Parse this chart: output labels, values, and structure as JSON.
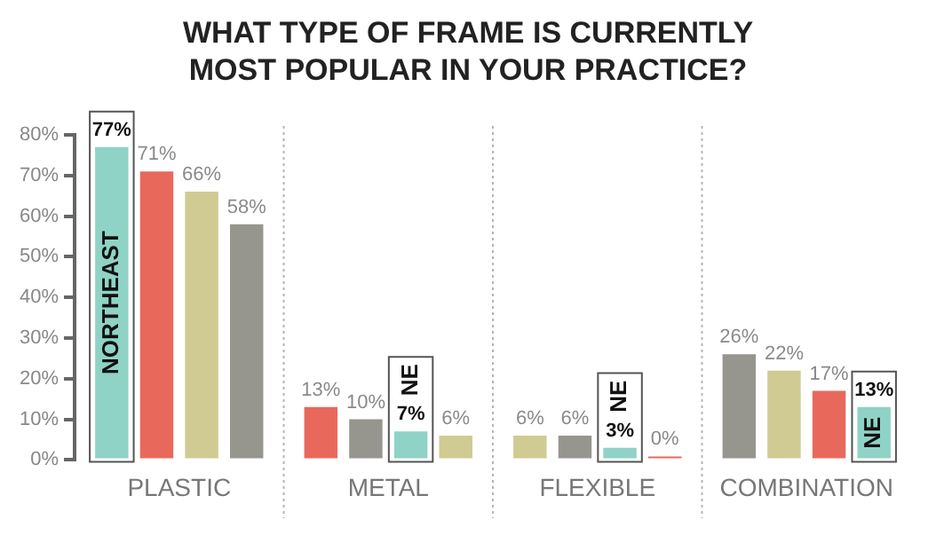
{
  "chart_data": {
    "type": "bar",
    "title": "WHAT TYPE OF FRAME IS CURRENTLY MOST POPULAR IN YOUR PRACTICE?",
    "categories": [
      "PLASTIC",
      "METAL",
      "FLEXIBLE",
      "COMBINATION"
    ],
    "series": [
      {
        "colors": [
          "#8fd3c6",
          "#e8695c",
          "#cfcb92",
          "#96968f"
        ],
        "values": [
          77,
          13,
          6,
          26
        ],
        "value_labels": [
          "77%",
          "13%",
          "6%",
          "26%"
        ]
      },
      {
        "colors": [
          "#e8695c",
          "#96968f",
          "#96968f",
          "#cfcb92"
        ],
        "values": [
          71,
          10,
          6,
          22
        ],
        "value_labels": [
          "71%",
          "10%",
          "6%",
          "22%"
        ]
      },
      {
        "colors": [
          "#cfcb92",
          "#8fd3c6",
          "#8fd3c6",
          "#e8695c"
        ],
        "values": [
          66,
          7,
          3,
          17
        ],
        "value_labels": [
          "66%",
          "7%",
          "3%",
          "17%"
        ]
      },
      {
        "colors": [
          "#96968f",
          "#cfcb92",
          "#e8695c",
          "#8fd3c6"
        ],
        "values": [
          58,
          6,
          0,
          13
        ],
        "value_labels": [
          "58%",
          "6%",
          "0%",
          "13%"
        ]
      }
    ],
    "ylim": [
      0,
      80
    ],
    "yticks": [
      {
        "value": 0,
        "label": "0%"
      },
      {
        "value": 10,
        "label": "10%"
      },
      {
        "value": 20,
        "label": "20%"
      },
      {
        "value": 30,
        "label": "30%"
      },
      {
        "value": 40,
        "label": "40%"
      },
      {
        "value": 50,
        "label": "50%"
      },
      {
        "value": 60,
        "label": "60%"
      },
      {
        "value": 70,
        "label": "70%"
      },
      {
        "value": 80,
        "label": "80%"
      }
    ],
    "grid": false,
    "legend": false,
    "annotations": [
      "NORTHEAST",
      "NE",
      "NE",
      "NE"
    ]
  }
}
